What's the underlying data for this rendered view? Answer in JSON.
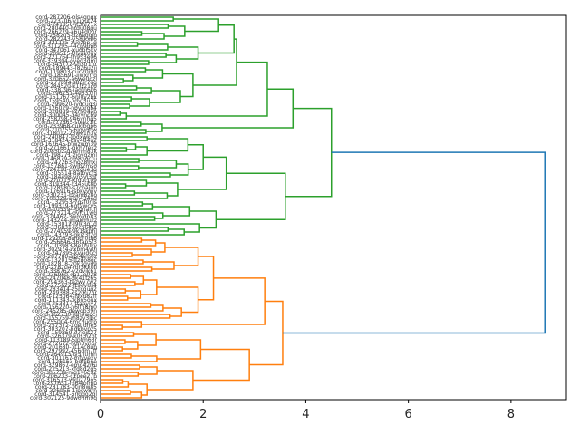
{
  "chart_data": {
    "type": "dendrogram",
    "orientation": "horizontal",
    "title": "",
    "xlabel": "",
    "ylabel": "",
    "xlim": [
      0,
      9.08
    ],
    "xticks": [
      0,
      2,
      4,
      6,
      8
    ],
    "xtick_labels": [
      "0",
      "2",
      "4",
      "6",
      "8"
    ],
    "grid": false,
    "colors": {
      "cluster_green": "#2ca02c",
      "cluster_orange": "#ff7f0e",
      "root_link": "#1f77b4",
      "axis": "#000000"
    },
    "leaf_count": 106,
    "leaf_labels_readable": {
      "first": "cord-287206-ols4gnqx",
      "last": "cord-302125-9dw0nm9q"
    },
    "root_merge_height": 8.66,
    "clusters": [
      {
        "name": "green",
        "color": "#2ca02c",
        "leaves": 61,
        "merge_height": 4.5,
        "subclusters": [
          {
            "leaves": 33,
            "merge_height": 3.75,
            "subclusters": [
              {
                "leaves": 29,
                "merge_height": 3.25,
                "subclusters": [
                  {
                    "leaves": 26,
                    "merge_height": 2.65,
                    "subclusters": [
                      {
                        "leaves": 14,
                        "merge_height": 2.6,
                        "subclusters": [
                          {
                            "leaves": 7,
                            "merge_height": 2.3
                          },
                          {
                            "leaves": 7,
                            "merge_height": 1.9
                          }
                        ]
                      },
                      {
                        "leaves": 12,
                        "merge_height": 1.8
                      }
                    ]
                  },
                  {
                    "leaves": 3,
                    "merge_height": 0.5
                  }
                ]
              },
              {
                "leaves": 4,
                "merge_height": 1.2
              }
            ]
          },
          {
            "leaves": 28,
            "merge_height": 3.6,
            "subclusters": [
              {
                "leaves": 18,
                "merge_height": 2.45,
                "subclusters": [
                  {
                    "leaves": 12,
                    "merge_height": 2.0
                  },
                  {
                    "leaves": 6,
                    "merge_height": 1.5
                  }
                ]
              },
              {
                "leaves": 10,
                "merge_height": 2.25
              }
            ]
          }
        ]
      },
      {
        "name": "orange",
        "color": "#ff7f0e",
        "leaves": 45,
        "merge_height": 3.55,
        "subclusters": [
          {
            "leaves": 26,
            "merge_height": 3.2,
            "subclusters": [
              {
                "leaves": 23,
                "merge_height": 2.2,
                "subclusters": [
                  {
                    "leaves": 10,
                    "merge_height": 1.9
                  },
                  {
                    "leaves": 13,
                    "merge_height": 1.9
                  }
                ]
              },
              {
                "leaves": 3,
                "merge_height": 0.8
              }
            ]
          },
          {
            "leaves": 19,
            "merge_height": 2.9,
            "subclusters": [
              {
                "leaves": 9,
                "merge_height": 1.95
              },
              {
                "leaves": 10,
                "merge_height": 1.8
              }
            ]
          }
        ]
      }
    ]
  }
}
